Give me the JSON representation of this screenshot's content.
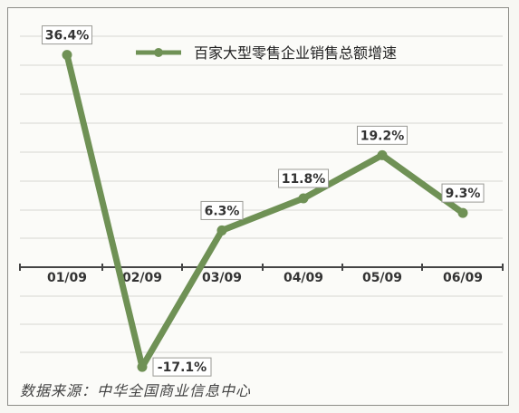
{
  "chart_data": {
    "type": "line",
    "categories": [
      "01/09",
      "02/09",
      "03/09",
      "04/09",
      "05/09",
      "06/09"
    ],
    "series": [
      {
        "name": "百家大型零售企业销售总额增速",
        "values": [
          36.4,
          -17.1,
          6.3,
          11.8,
          19.2,
          9.3
        ],
        "labels": [
          "36.4%",
          "-17.1%",
          "6.3%",
          "11.8%",
          "19.2%",
          "9.3%"
        ],
        "color": "#6f9155"
      }
    ],
    "title": "",
    "xlabel": "",
    "ylabel": "",
    "ylim": [
      -20,
      40
    ],
    "grid": true,
    "legend_position": "top-right"
  },
  "source": "数据来源：中华全国商业信息中心"
}
